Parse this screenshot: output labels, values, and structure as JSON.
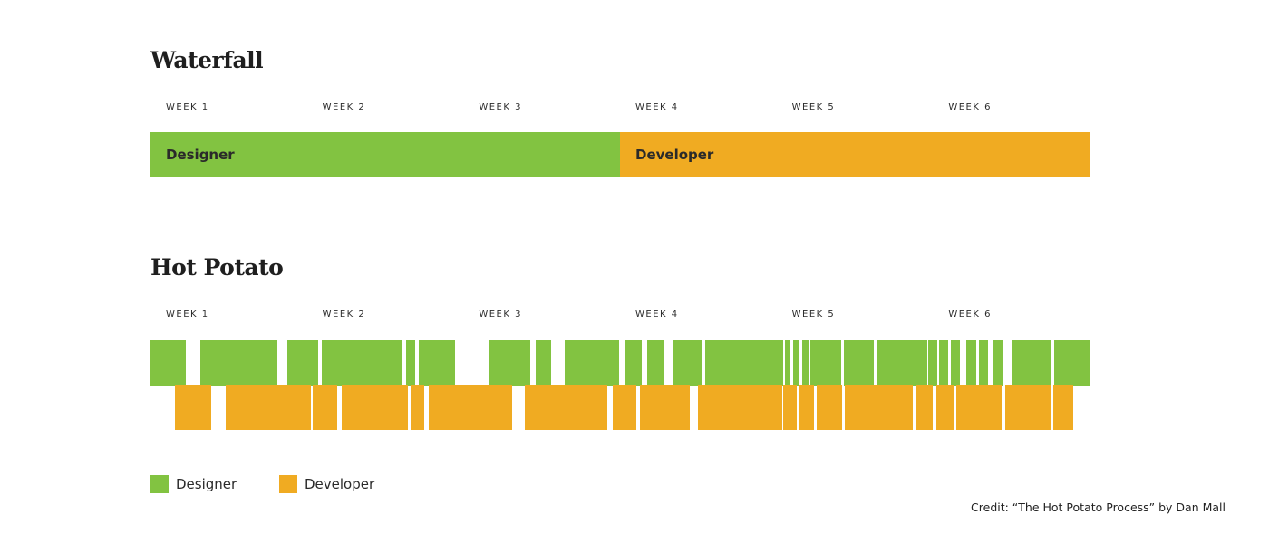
{
  "colors": {
    "designer": "#82c341",
    "developer": "#f0ab22",
    "text": "#2a2a2a"
  },
  "waterfall": {
    "title": "Waterfall",
    "weeks": [
      "WEEK 1",
      "WEEK 2",
      "WEEK 3",
      "WEEK 4",
      "WEEK 5",
      "WEEK 6"
    ],
    "phases": [
      {
        "label": "Designer",
        "role": "designer",
        "start_week": 0,
        "end_week": 3
      },
      {
        "label": "Developer",
        "role": "developer",
        "start_week": 3,
        "end_week": 6
      }
    ]
  },
  "hot_potato": {
    "title": "Hot Potato",
    "weeks": [
      "WEEK 1",
      "WEEK 2",
      "WEEK 3",
      "WEEK 4",
      "WEEK 5",
      "WEEK 6"
    ],
    "designer_segments": [
      [
        0.0,
        0.227
      ],
      [
        0.317,
        0.809
      ],
      [
        0.872,
        1.072
      ],
      [
        1.095,
        1.605
      ],
      [
        1.632,
        1.694
      ],
      [
        1.713,
        1.944
      ],
      [
        2.163,
        2.427
      ],
      [
        2.459,
        2.561
      ],
      [
        2.645,
        2.995
      ],
      [
        3.029,
        3.141
      ],
      [
        3.172,
        3.285
      ],
      [
        3.336,
        3.527
      ],
      [
        3.546,
        4.045
      ],
      [
        4.054,
        4.091
      ],
      [
        4.108,
        4.147
      ],
      [
        4.162,
        4.205
      ],
      [
        4.218,
        4.412
      ],
      [
        4.428,
        4.622
      ],
      [
        4.643,
        4.962
      ],
      [
        4.971,
        5.027
      ],
      [
        5.039,
        5.096
      ],
      [
        5.115,
        5.171
      ],
      [
        5.213,
        5.275
      ],
      [
        5.296,
        5.353
      ],
      [
        5.382,
        5.444
      ],
      [
        5.507,
        5.756
      ],
      [
        5.771,
        6.0
      ]
    ],
    "developer_segments": [
      [
        0.156,
        0.388
      ],
      [
        0.478,
        1.024
      ],
      [
        1.035,
        1.192
      ],
      [
        1.219,
        1.642
      ],
      [
        1.663,
        1.749
      ],
      [
        1.78,
        2.311
      ],
      [
        2.392,
        2.918
      ],
      [
        2.955,
        3.104
      ],
      [
        3.125,
        3.444
      ],
      [
        3.498,
        4.034
      ],
      [
        4.045,
        4.132
      ],
      [
        4.148,
        4.237
      ],
      [
        4.258,
        4.418
      ],
      [
        4.438,
        4.871
      ],
      [
        4.892,
        4.999
      ],
      [
        5.019,
        5.129
      ],
      [
        5.149,
        5.438
      ],
      [
        5.459,
        5.749
      ],
      [
        5.77,
        5.896
      ]
    ]
  },
  "legend": [
    {
      "label": "Designer",
      "role": "designer"
    },
    {
      "label": "Developer",
      "role": "developer"
    }
  ],
  "credit": "Credit: “The Hot Potato Process” by Dan Mall"
}
